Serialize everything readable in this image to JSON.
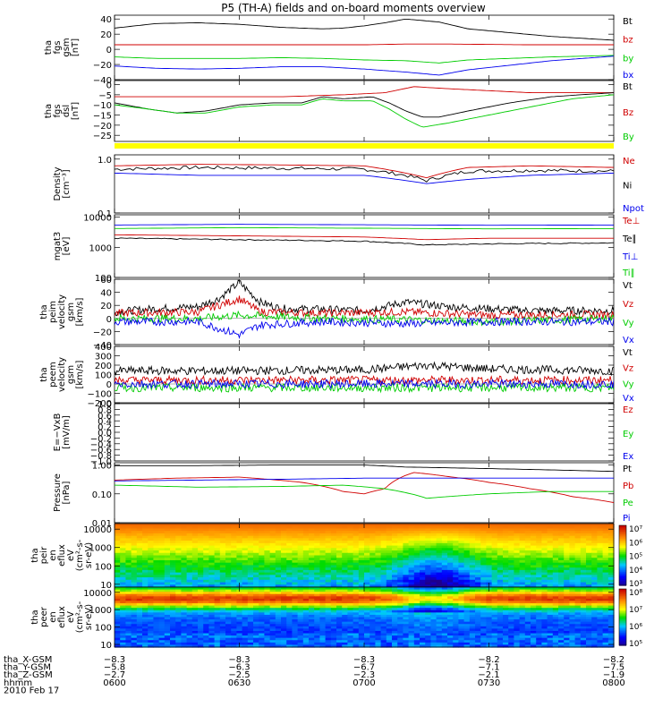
{
  "title": "P5 (TH-A) fields and on-board moments overview",
  "colors": {
    "black": "#000000",
    "red": "#d00000",
    "green": "#00cc00",
    "blue": "#0000ee",
    "yellow": "#ffff00"
  },
  "panels": [
    {
      "id": "fgs-gsm",
      "ylabel_lines": [
        "tha",
        "fgs",
        "gsm",
        "[nT]"
      ],
      "ylim": [
        -40,
        45
      ],
      "yticks": [
        "40",
        "20",
        "0",
        "−20",
        "−40"
      ],
      "ytick_values": [
        40,
        20,
        0,
        -20,
        -40
      ],
      "legend": [
        {
          "text": "Bt",
          "color": "#000000"
        },
        {
          "text": "bz",
          "color": "#d00000"
        },
        {
          "text": "by",
          "color": "#00cc00"
        },
        {
          "text": "bx",
          "color": "#0000ee"
        }
      ]
    },
    {
      "id": "fgs-dsl",
      "ylabel_lines": [
        "tha",
        "fgs",
        "dsl",
        "[nT]"
      ],
      "ylim": [
        -28,
        2
      ],
      "yticks": [
        "0",
        "−5",
        "−10",
        "−15",
        "−20",
        "−25"
      ],
      "ytick_values": [
        0,
        -5,
        -10,
        -15,
        -20,
        -25
      ],
      "legend": [
        {
          "text": "Bt",
          "color": "#000000"
        },
        {
          "text": "Bz",
          "color": "#d00000"
        },
        {
          "text": "By",
          "color": "#00cc00"
        }
      ]
    },
    {
      "id": "density",
      "ylabel_lines": [
        "Density",
        "[cm⁻³]"
      ],
      "scale": "log",
      "ylim": [
        0.1,
        1.2
      ],
      "yticks": [
        "1.0",
        "0.1"
      ],
      "ytick_values": [
        1.0,
        0.1
      ],
      "legend": [
        {
          "text": "Ne",
          "color": "#d00000"
        },
        {
          "text": "Ni",
          "color": "#000000"
        },
        {
          "text": "Npot",
          "color": "#0000ee"
        }
      ]
    },
    {
      "id": "temperature",
      "ylabel_lines": [
        "mgat3",
        "[eV]"
      ],
      "scale": "log",
      "ylim": [
        100,
        12000
      ],
      "yticks": [
        "10000",
        "1000",
        "100"
      ],
      "ytick_values": [
        10000,
        1000,
        100
      ],
      "legend": [
        {
          "text": "Te⊥",
          "color": "#d00000"
        },
        {
          "text": "Te∥",
          "color": "#000000"
        },
        {
          "text": "Ti⊥",
          "color": "#0000ee"
        },
        {
          "text": "Ti∥",
          "color": "#00cc00"
        }
      ]
    },
    {
      "id": "peim-velocity",
      "ylabel_lines": [
        "tha",
        "peim",
        "velocity",
        "gsm",
        "[km/s]"
      ],
      "ylim": [
        -40,
        60
      ],
      "yticks": [
        "60",
        "40",
        "20",
        "0",
        "−20",
        "−40"
      ],
      "ytick_values": [
        60,
        40,
        20,
        0,
        -20,
        -40
      ],
      "legend": [
        {
          "text": "Vt",
          "color": "#000000"
        },
        {
          "text": "Vz",
          "color": "#d00000"
        },
        {
          "text": "Vy",
          "color": "#00cc00"
        },
        {
          "text": "Vx",
          "color": "#0000ee"
        }
      ]
    },
    {
      "id": "peem-velocity",
      "ylabel_lines": [
        "tha",
        "peem",
        "velocity",
        "gsm",
        "[km/s]"
      ],
      "ylim": [
        -200,
        400
      ],
      "yticks": [
        "400",
        "300",
        "200",
        "100",
        "0",
        "−100",
        "−200"
      ],
      "ytick_values": [
        400,
        300,
        200,
        100,
        0,
        -100,
        -200
      ],
      "legend": [
        {
          "text": "Vt",
          "color": "#000000"
        },
        {
          "text": "Vz",
          "color": "#d00000"
        },
        {
          "text": "Vy",
          "color": "#00cc00"
        },
        {
          "text": "Vx",
          "color": "#0000ee"
        }
      ]
    },
    {
      "id": "efield",
      "ylabel_lines": [
        "E=−VxB",
        "[mV/m]"
      ],
      "ylim": [
        -1.0,
        1.0
      ],
      "yticks": [
        "1.0",
        "0.8",
        "0.6",
        "0.4",
        "0.2",
        "0.0",
        "−0.2",
        "−0.4",
        "−0.6",
        "−0.8",
        "−1.0"
      ],
      "ytick_values": [
        1.0,
        0.8,
        0.6,
        0.4,
        0.2,
        0.0,
        -0.2,
        -0.4,
        -0.6,
        -0.8,
        -1.0
      ],
      "legend": [
        {
          "text": "Ez",
          "color": "#d00000"
        },
        {
          "text": "Ey",
          "color": "#00cc00"
        },
        {
          "text": "Ex",
          "color": "#0000ee"
        }
      ]
    },
    {
      "id": "pressure",
      "ylabel_lines": [
        "Pressure",
        "[nPa]"
      ],
      "scale": "log",
      "ylim": [
        0.01,
        1.2
      ],
      "yticks": [
        "1.00",
        "0.10",
        "0.01"
      ],
      "ytick_values": [
        1.0,
        0.1,
        0.01
      ],
      "legend": [
        {
          "text": "Pt",
          "color": "#000000"
        },
        {
          "text": "Pb",
          "color": "#d00000"
        },
        {
          "text": "Pe",
          "color": "#00cc00"
        },
        {
          "text": "Pi",
          "color": "#0000ee"
        }
      ]
    },
    {
      "id": "peir-spectrogram",
      "ylabel_lines": [
        "tha",
        "peir",
        "en",
        "eflux",
        "eV",
        "(cm²-s-",
        "sr-eV)"
      ],
      "scale": "log",
      "ylim": [
        7,
        20000
      ],
      "yticks": [
        "10000",
        "1000",
        "100",
        "10"
      ],
      "ytick_values": [
        10000,
        1000,
        100,
        10
      ],
      "colorbar_ticks": [
        "10⁷",
        "10⁶",
        "10⁵",
        "10⁴",
        "10³"
      ]
    },
    {
      "id": "peer-spectrogram",
      "ylabel_lines": [
        "tha",
        "peer",
        "en",
        "eflux",
        "eV",
        "(cm²-s-",
        "sr-eV)"
      ],
      "scale": "log",
      "ylim": [
        7,
        20000
      ],
      "yticks": [
        "10000",
        "1000",
        "100",
        "10"
      ],
      "ytick_values": [
        10000,
        1000,
        100,
        10
      ],
      "colorbar_ticks": [
        "10⁸",
        "10⁷",
        "10⁶",
        "10⁵"
      ]
    }
  ],
  "chart_data": {
    "type": "line",
    "title": "P5 (TH-A) fields and on-board moments overview",
    "x_axis": {
      "rows": [
        {
          "label": "tha_X-GSM",
          "values": [
            "−8.3",
            "−8.3",
            "−8.3",
            "−8.2",
            "−8.2"
          ]
        },
        {
          "label": "tha_Y-GSM",
          "values": [
            "−5.8",
            "−6.3",
            "−6.7",
            "−7.1",
            "−7.5"
          ]
        },
        {
          "label": "tha_Z-GSM",
          "values": [
            "−2.7",
            "−2.5",
            "−2.3",
            "−2.1",
            "−1.9"
          ]
        },
        {
          "label": "hhmm",
          "values": [
            "0600",
            "0630",
            "0700",
            "0730",
            "0800"
          ]
        }
      ],
      "date": "2010 Feb 17",
      "range_minutes": [
        0,
        120
      ]
    },
    "series": [
      {
        "panel": "fgs-gsm",
        "name": "Bt",
        "color": "black",
        "x": [
          0,
          10,
          20,
          30,
          40,
          50,
          55,
          60,
          65,
          70,
          78,
          85,
          95,
          105,
          120
        ],
        "y": [
          28,
          34,
          35,
          33,
          29,
          27,
          28,
          31,
          35,
          40,
          36,
          27,
          22,
          17,
          12
        ]
      },
      {
        "panel": "fgs-gsm",
        "name": "bz",
        "color": "red",
        "x": [
          0,
          20,
          40,
          60,
          70,
          80,
          100,
          120
        ],
        "y": [
          6,
          6,
          6,
          6,
          7,
          7,
          6,
          6
        ]
      },
      {
        "panel": "fgs-gsm",
        "name": "by",
        "color": "green",
        "x": [
          0,
          10,
          20,
          30,
          40,
          50,
          60,
          70,
          78,
          85,
          95,
          105,
          120
        ],
        "y": [
          -10,
          -12,
          -12,
          -12,
          -11,
          -12,
          -14,
          -15,
          -18,
          -14,
          -12,
          -10,
          -8
        ]
      },
      {
        "panel": "fgs-gsm",
        "name": "bx",
        "color": "blue",
        "x": [
          0,
          10,
          20,
          30,
          40,
          50,
          60,
          70,
          78,
          85,
          95,
          105,
          120
        ],
        "y": [
          -22,
          -25,
          -26,
          -25,
          -23,
          -23,
          -26,
          -30,
          -34,
          -27,
          -21,
          -15,
          -9
        ]
      },
      {
        "panel": "fgs-dsl",
        "name": "Bz",
        "color": "red",
        "x": [
          0,
          20,
          40,
          55,
          65,
          72,
          80,
          90,
          100,
          110,
          120
        ],
        "y": [
          -6,
          -6,
          -6,
          -5,
          -4,
          -1,
          -2,
          -3,
          -4,
          -4,
          -4
        ]
      },
      {
        "panel": "fgs-dsl",
        "name": "Bt",
        "color": "black",
        "x": [
          0,
          8,
          15,
          22,
          30,
          38,
          45,
          50,
          55,
          62,
          66,
          70,
          74,
          78,
          85,
          95,
          105,
          112,
          120
        ],
        "y": [
          -9,
          -12,
          -14,
          -13,
          -10,
          -9,
          -9,
          -6,
          -7,
          -6,
          -9,
          -13,
          -16,
          -16,
          -13,
          -9,
          -6,
          -5,
          -4
        ]
      },
      {
        "panel": "fgs-dsl",
        "name": "By",
        "color": "green",
        "x": [
          0,
          8,
          15,
          22,
          30,
          38,
          45,
          50,
          55,
          62,
          66,
          70,
          74,
          80,
          90,
          100,
          110,
          120
        ],
        "y": [
          -10,
          -12,
          -14,
          -14,
          -11,
          -10,
          -10,
          -7,
          -8,
          -8,
          -12,
          -17,
          -21,
          -19,
          -15,
          -11,
          -7,
          -5
        ]
      },
      {
        "panel": "density",
        "name": "Ne",
        "color": "red",
        "x": [
          0,
          20,
          40,
          60,
          70,
          75,
          85,
          100,
          120
        ],
        "y": [
          0.75,
          0.8,
          0.78,
          0.75,
          0.55,
          0.45,
          0.7,
          0.75,
          0.7
        ]
      },
      {
        "panel": "density",
        "name": "Ni",
        "color": "black",
        "x": [
          0,
          20,
          40,
          60,
          70,
          75,
          85,
          100,
          120
        ],
        "y": [
          0.65,
          0.7,
          0.68,
          0.65,
          0.5,
          0.4,
          0.6,
          0.62,
          0.6
        ]
      },
      {
        "panel": "density",
        "name": "Npot",
        "color": "blue",
        "x": [
          0,
          20,
          40,
          60,
          70,
          75,
          85,
          100,
          120
        ],
        "y": [
          0.55,
          0.5,
          0.5,
          0.5,
          0.4,
          0.35,
          0.42,
          0.5,
          0.55
        ]
      },
      {
        "panel": "temperature",
        "name": "Ti⊥",
        "color": "blue",
        "x": [
          0,
          30,
          60,
          90,
          120
        ],
        "y": [
          5500,
          5800,
          5600,
          5400,
          5500
        ]
      },
      {
        "panel": "temperature",
        "name": "Ti∥",
        "color": "green",
        "x": [
          0,
          30,
          60,
          90,
          120
        ],
        "y": [
          4200,
          4500,
          4300,
          4100,
          4200
        ]
      },
      {
        "panel": "temperature",
        "name": "Te⊥",
        "color": "red",
        "x": [
          0,
          30,
          60,
          75,
          90,
          120
        ],
        "y": [
          2600,
          2400,
          2200,
          1800,
          2000,
          2000
        ]
      },
      {
        "panel": "temperature",
        "name": "Te∥",
        "color": "black",
        "x": [
          0,
          30,
          60,
          75,
          90,
          120
        ],
        "y": [
          2000,
          1800,
          1600,
          1200,
          1300,
          1400
        ]
      },
      {
        "panel": "peim-velocity",
        "name": "Vt",
        "color": "black",
        "x": [
          0,
          10,
          20,
          25,
          30,
          35,
          40,
          50,
          60,
          70,
          80,
          90,
          100,
          110,
          120
        ],
        "y": [
          10,
          15,
          18,
          30,
          55,
          25,
          15,
          14,
          12,
          25,
          18,
          15,
          12,
          12,
          12
        ]
      },
      {
        "panel": "peim-velocity",
        "name": "Vz",
        "color": "red",
        "x": [
          0,
          20,
          25,
          30,
          35,
          50,
          70,
          90,
          120
        ],
        "y": [
          8,
          10,
          20,
          30,
          10,
          8,
          10,
          5,
          6
        ]
      },
      {
        "panel": "peim-velocity",
        "name": "Vy",
        "color": "green",
        "x": [
          0,
          20,
          30,
          50,
          70,
          90,
          120
        ],
        "y": [
          0,
          0,
          5,
          0,
          -2,
          -5,
          0
        ]
      },
      {
        "panel": "peim-velocity",
        "name": "Vx",
        "color": "blue",
        "x": [
          0,
          20,
          25,
          30,
          35,
          50,
          70,
          90,
          120
        ],
        "y": [
          -5,
          -5,
          -15,
          -25,
          -10,
          -5,
          -8,
          -5,
          -5
        ]
      },
      {
        "panel": "peem-velocity",
        "name": "Vt",
        "color": "black",
        "x": [
          0,
          30,
          60,
          75,
          90,
          120
        ],
        "y": [
          140,
          140,
          150,
          200,
          160,
          140
        ]
      },
      {
        "panel": "peem-velocity",
        "name": "Vz",
        "color": "red",
        "x": [
          0,
          30,
          60,
          90,
          120
        ],
        "y": [
          40,
          40,
          40,
          40,
          40
        ]
      },
      {
        "panel": "peem-velocity",
        "name": "Vy",
        "color": "green",
        "x": [
          0,
          30,
          60,
          90,
          120
        ],
        "y": [
          -40,
          -40,
          -40,
          -40,
          -40
        ]
      },
      {
        "panel": "peem-velocity",
        "name": "Vx",
        "color": "blue",
        "x": [
          0,
          30,
          60,
          90,
          120
        ],
        "y": [
          0,
          0,
          0,
          0,
          0
        ]
      },
      {
        "panel": "pressure",
        "name": "Pt",
        "color": "black",
        "x": [
          0,
          20,
          40,
          60,
          70,
          80,
          100,
          120
        ],
        "y": [
          0.95,
          0.95,
          1.0,
          1.0,
          0.85,
          0.8,
          0.7,
          0.6
        ]
      },
      {
        "panel": "pressure",
        "name": "Pb",
        "color": "red",
        "x": [
          0,
          15,
          30,
          45,
          55,
          60,
          65,
          72,
          80,
          90,
          100,
          110,
          120
        ],
        "y": [
          0.3,
          0.35,
          0.38,
          0.25,
          0.12,
          0.1,
          0.15,
          0.55,
          0.4,
          0.25,
          0.15,
          0.08,
          0.05
        ]
      },
      {
        "panel": "pressure",
        "name": "Pi",
        "color": "blue",
        "x": [
          0,
          20,
          40,
          60,
          80,
          100,
          120
        ],
        "y": [
          0.28,
          0.3,
          0.32,
          0.35,
          0.35,
          0.35,
          0.35
        ]
      },
      {
        "panel": "pressure",
        "name": "Pe",
        "color": "green",
        "x": [
          0,
          20,
          40,
          55,
          65,
          75,
          90,
          105,
          120
        ],
        "y": [
          0.2,
          0.17,
          0.18,
          0.2,
          0.15,
          0.07,
          0.1,
          0.12,
          0.12
        ]
      }
    ]
  },
  "orbit_labels": {
    "rows": [
      "tha_X-GSM",
      "tha_Y-GSM",
      "tha_Z-GSM",
      "hhmm"
    ],
    "date": "2010 Feb 17"
  }
}
